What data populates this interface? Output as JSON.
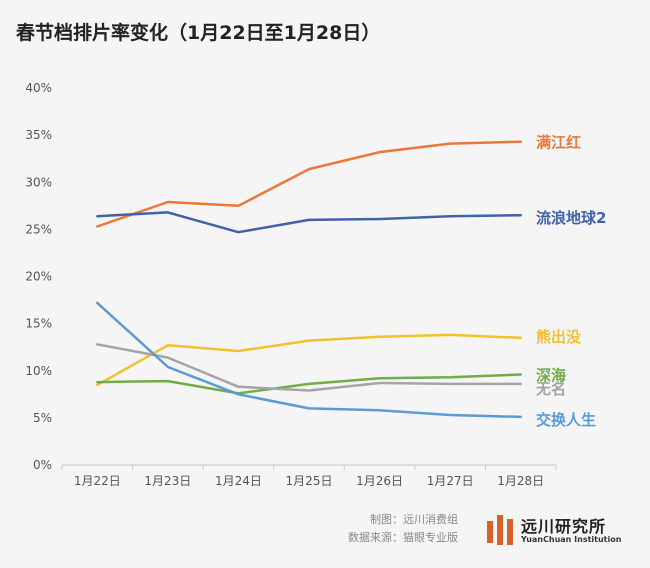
{
  "chart_data": {
    "type": "line",
    "title": "春节档排片率变化（1月22日至1月28日）",
    "xlabel": "",
    "ylabel": "",
    "ylim": [
      0,
      40
    ],
    "yticks": [
      0,
      5,
      10,
      15,
      20,
      25,
      30,
      35,
      40
    ],
    "ytick_labels": [
      "0%",
      "5%",
      "10%",
      "15%",
      "20%",
      "25%",
      "30%",
      "35%",
      "40%"
    ],
    "categories": [
      "1月22日",
      "1月23日",
      "1月24日",
      "1月25日",
      "1月26日",
      "1月27日",
      "1月28日"
    ],
    "grid": false,
    "series": [
      {
        "name": "满江红",
        "color": "#e8793a",
        "values": [
          25.3,
          27.9,
          27.5,
          31.4,
          33.2,
          34.1,
          34.3
        ]
      },
      {
        "name": "流浪地球2",
        "color": "#3f62a8",
        "values": [
          26.4,
          26.8,
          24.7,
          26.0,
          26.1,
          26.4,
          26.5
        ]
      },
      {
        "name": "熊出没",
        "color": "#f2c12e",
        "values": [
          8.5,
          12.7,
          12.1,
          13.2,
          13.6,
          13.8,
          13.5
        ]
      },
      {
        "name": "深海",
        "color": "#70ad47",
        "values": [
          8.8,
          8.9,
          7.6,
          8.6,
          9.2,
          9.3,
          9.6
        ]
      },
      {
        "name": "无名",
        "color": "#a5a5a5",
        "values": [
          12.8,
          11.4,
          8.3,
          7.9,
          8.7,
          8.6,
          8.6
        ]
      },
      {
        "name": "交换人生",
        "color": "#5b9bd5",
        "values": [
          17.2,
          10.4,
          7.5,
          6.0,
          5.8,
          5.3,
          5.1
        ]
      }
    ]
  },
  "footer": {
    "credit_producer": "制图：远川消费组",
    "credit_source": "数据来源：猫眼专业版"
  },
  "logo": {
    "name_cn": "远川研究所",
    "name_en": "YuanChuan Institution",
    "color": "#d8602a"
  }
}
